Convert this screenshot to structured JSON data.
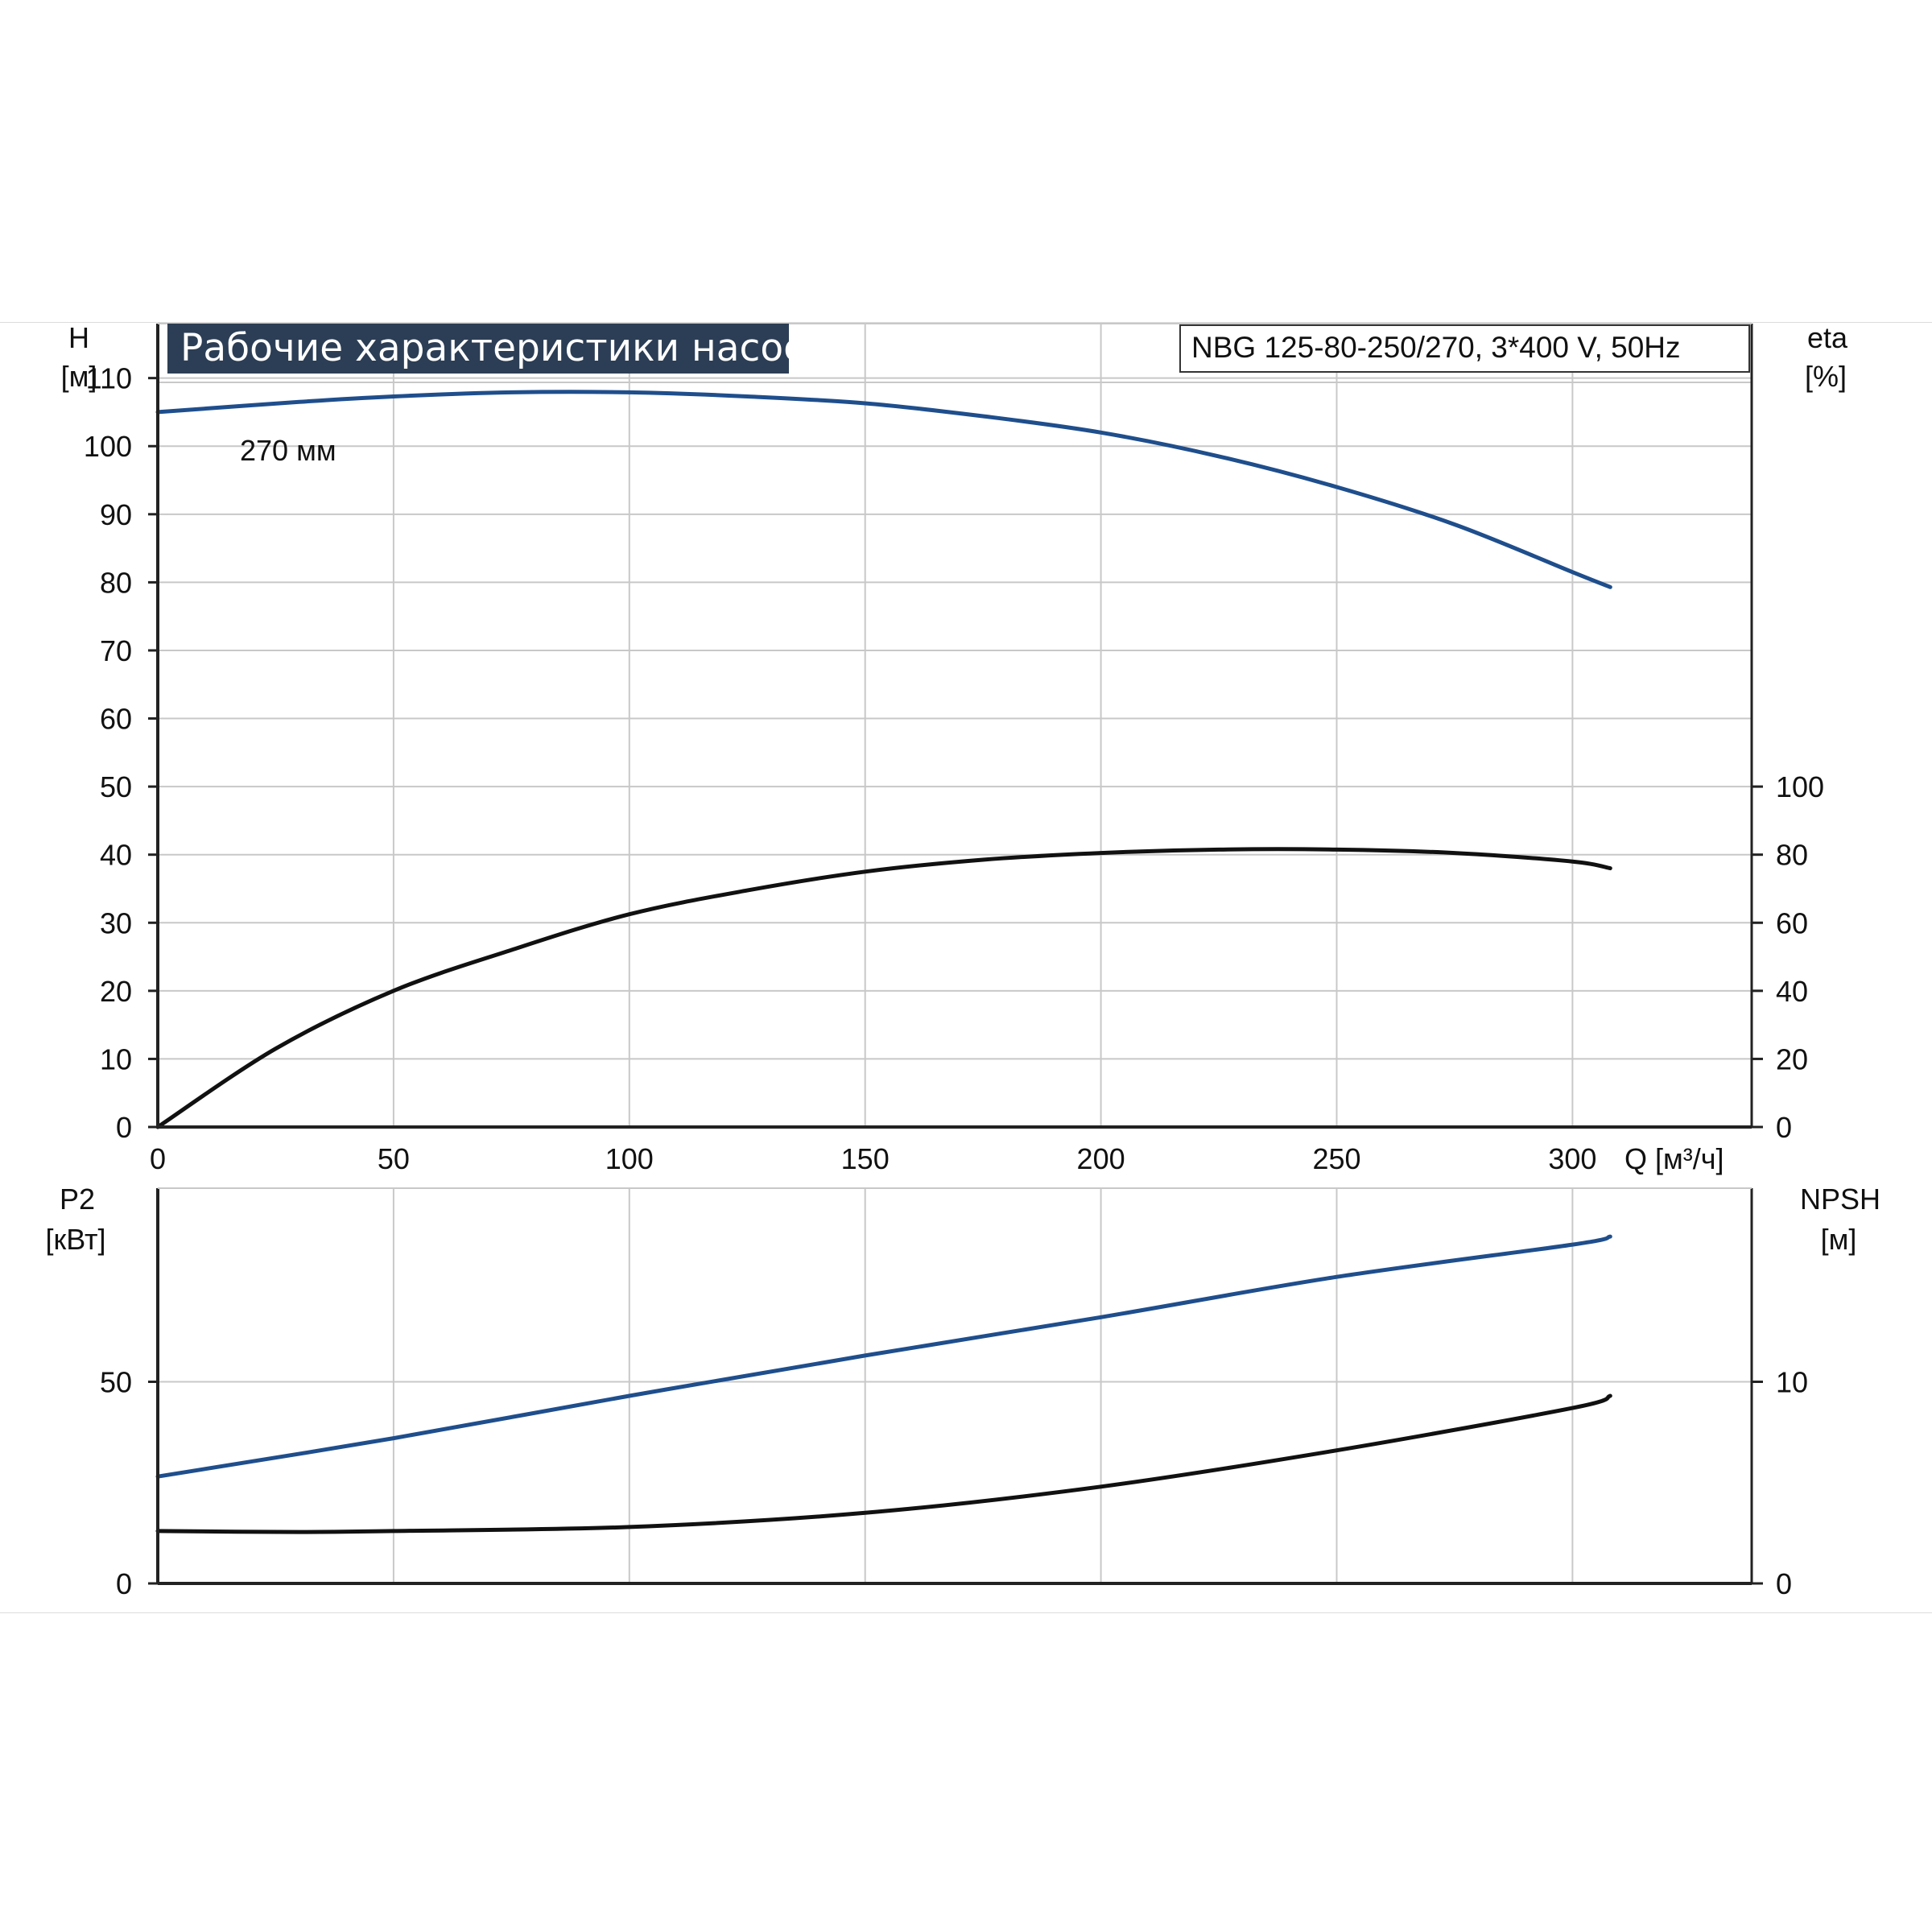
{
  "colors": {
    "blue": "#1f4e8c",
    "black": "#111111",
    "grid": "#c8c8c8",
    "title_bg": "#2c3e55"
  },
  "title": "Рабочие характеристики насоса",
  "model": "NBG 125-80-250/270, 3*400 V, 50Hz",
  "chart_data": [
    {
      "type": "line",
      "panel": "top",
      "xlabel": "Q [м³/ч]",
      "xticks": [
        "0",
        "50",
        "100",
        "150",
        "200",
        "250",
        "300"
      ],
      "xlim": [
        0,
        338
      ],
      "y_left": {
        "label_line1": "H",
        "label_line2": "[м]",
        "ylim": [
          0,
          118
        ],
        "ticks": [
          "0",
          "10",
          "20",
          "30",
          "40",
          "50",
          "60",
          "70",
          "80",
          "90",
          "100",
          "110"
        ]
      },
      "y_right": {
        "label_line1": "eta",
        "label_line2": "[%]",
        "ylim": [
          0,
          236
        ],
        "ticks": [
          "0",
          "20",
          "40",
          "60",
          "80",
          "100"
        ]
      },
      "series": [
        {
          "name": "270 мм",
          "axis": "left",
          "color": "blue",
          "x": [
            0,
            30,
            50,
            75,
            100,
            125,
            150,
            175,
            200,
            225,
            250,
            275,
            300,
            308
          ],
          "y": [
            105,
            106.5,
            107.3,
            107.9,
            107.9,
            107.3,
            106.3,
            104.4,
            102,
            98.5,
            94,
            88.5,
            81.5,
            79.3
          ]
        },
        {
          "axis": "right",
          "color": "black",
          "x": [
            0,
            25,
            50,
            75,
            100,
            125,
            150,
            175,
            200,
            225,
            250,
            275,
            300,
            308
          ],
          "y": [
            0,
            23,
            40,
            52,
            62.5,
            69.5,
            75,
            78.5,
            80.5,
            81.5,
            81.5,
            80.5,
            78,
            76
          ]
        }
      ]
    },
    {
      "type": "line",
      "panel": "bottom",
      "xlim": [
        0,
        338
      ],
      "y_left": {
        "label_line1": "P2",
        "label_line2": "[кВт]",
        "ylim": [
          0,
          98
        ],
        "ticks": [
          "0",
          "50"
        ]
      },
      "y_right": {
        "label_line1": "NPSH",
        "label_line2": "[м]",
        "ylim": [
          0,
          19.6
        ],
        "ticks": [
          "0",
          "10"
        ]
      },
      "series": [
        {
          "axis": "left",
          "color": "blue",
          "x": [
            0,
            50,
            100,
            150,
            200,
            250,
            300,
            308
          ],
          "y": [
            26.5,
            36,
            46.5,
            56.5,
            66,
            76,
            84,
            86
          ]
        },
        {
          "axis": "right",
          "color": "black",
          "x": [
            0,
            30,
            50,
            100,
            150,
            200,
            250,
            300,
            308
          ],
          "y": [
            2.6,
            2.55,
            2.6,
            2.8,
            3.5,
            4.8,
            6.6,
            8.7,
            9.3
          ]
        }
      ]
    }
  ]
}
